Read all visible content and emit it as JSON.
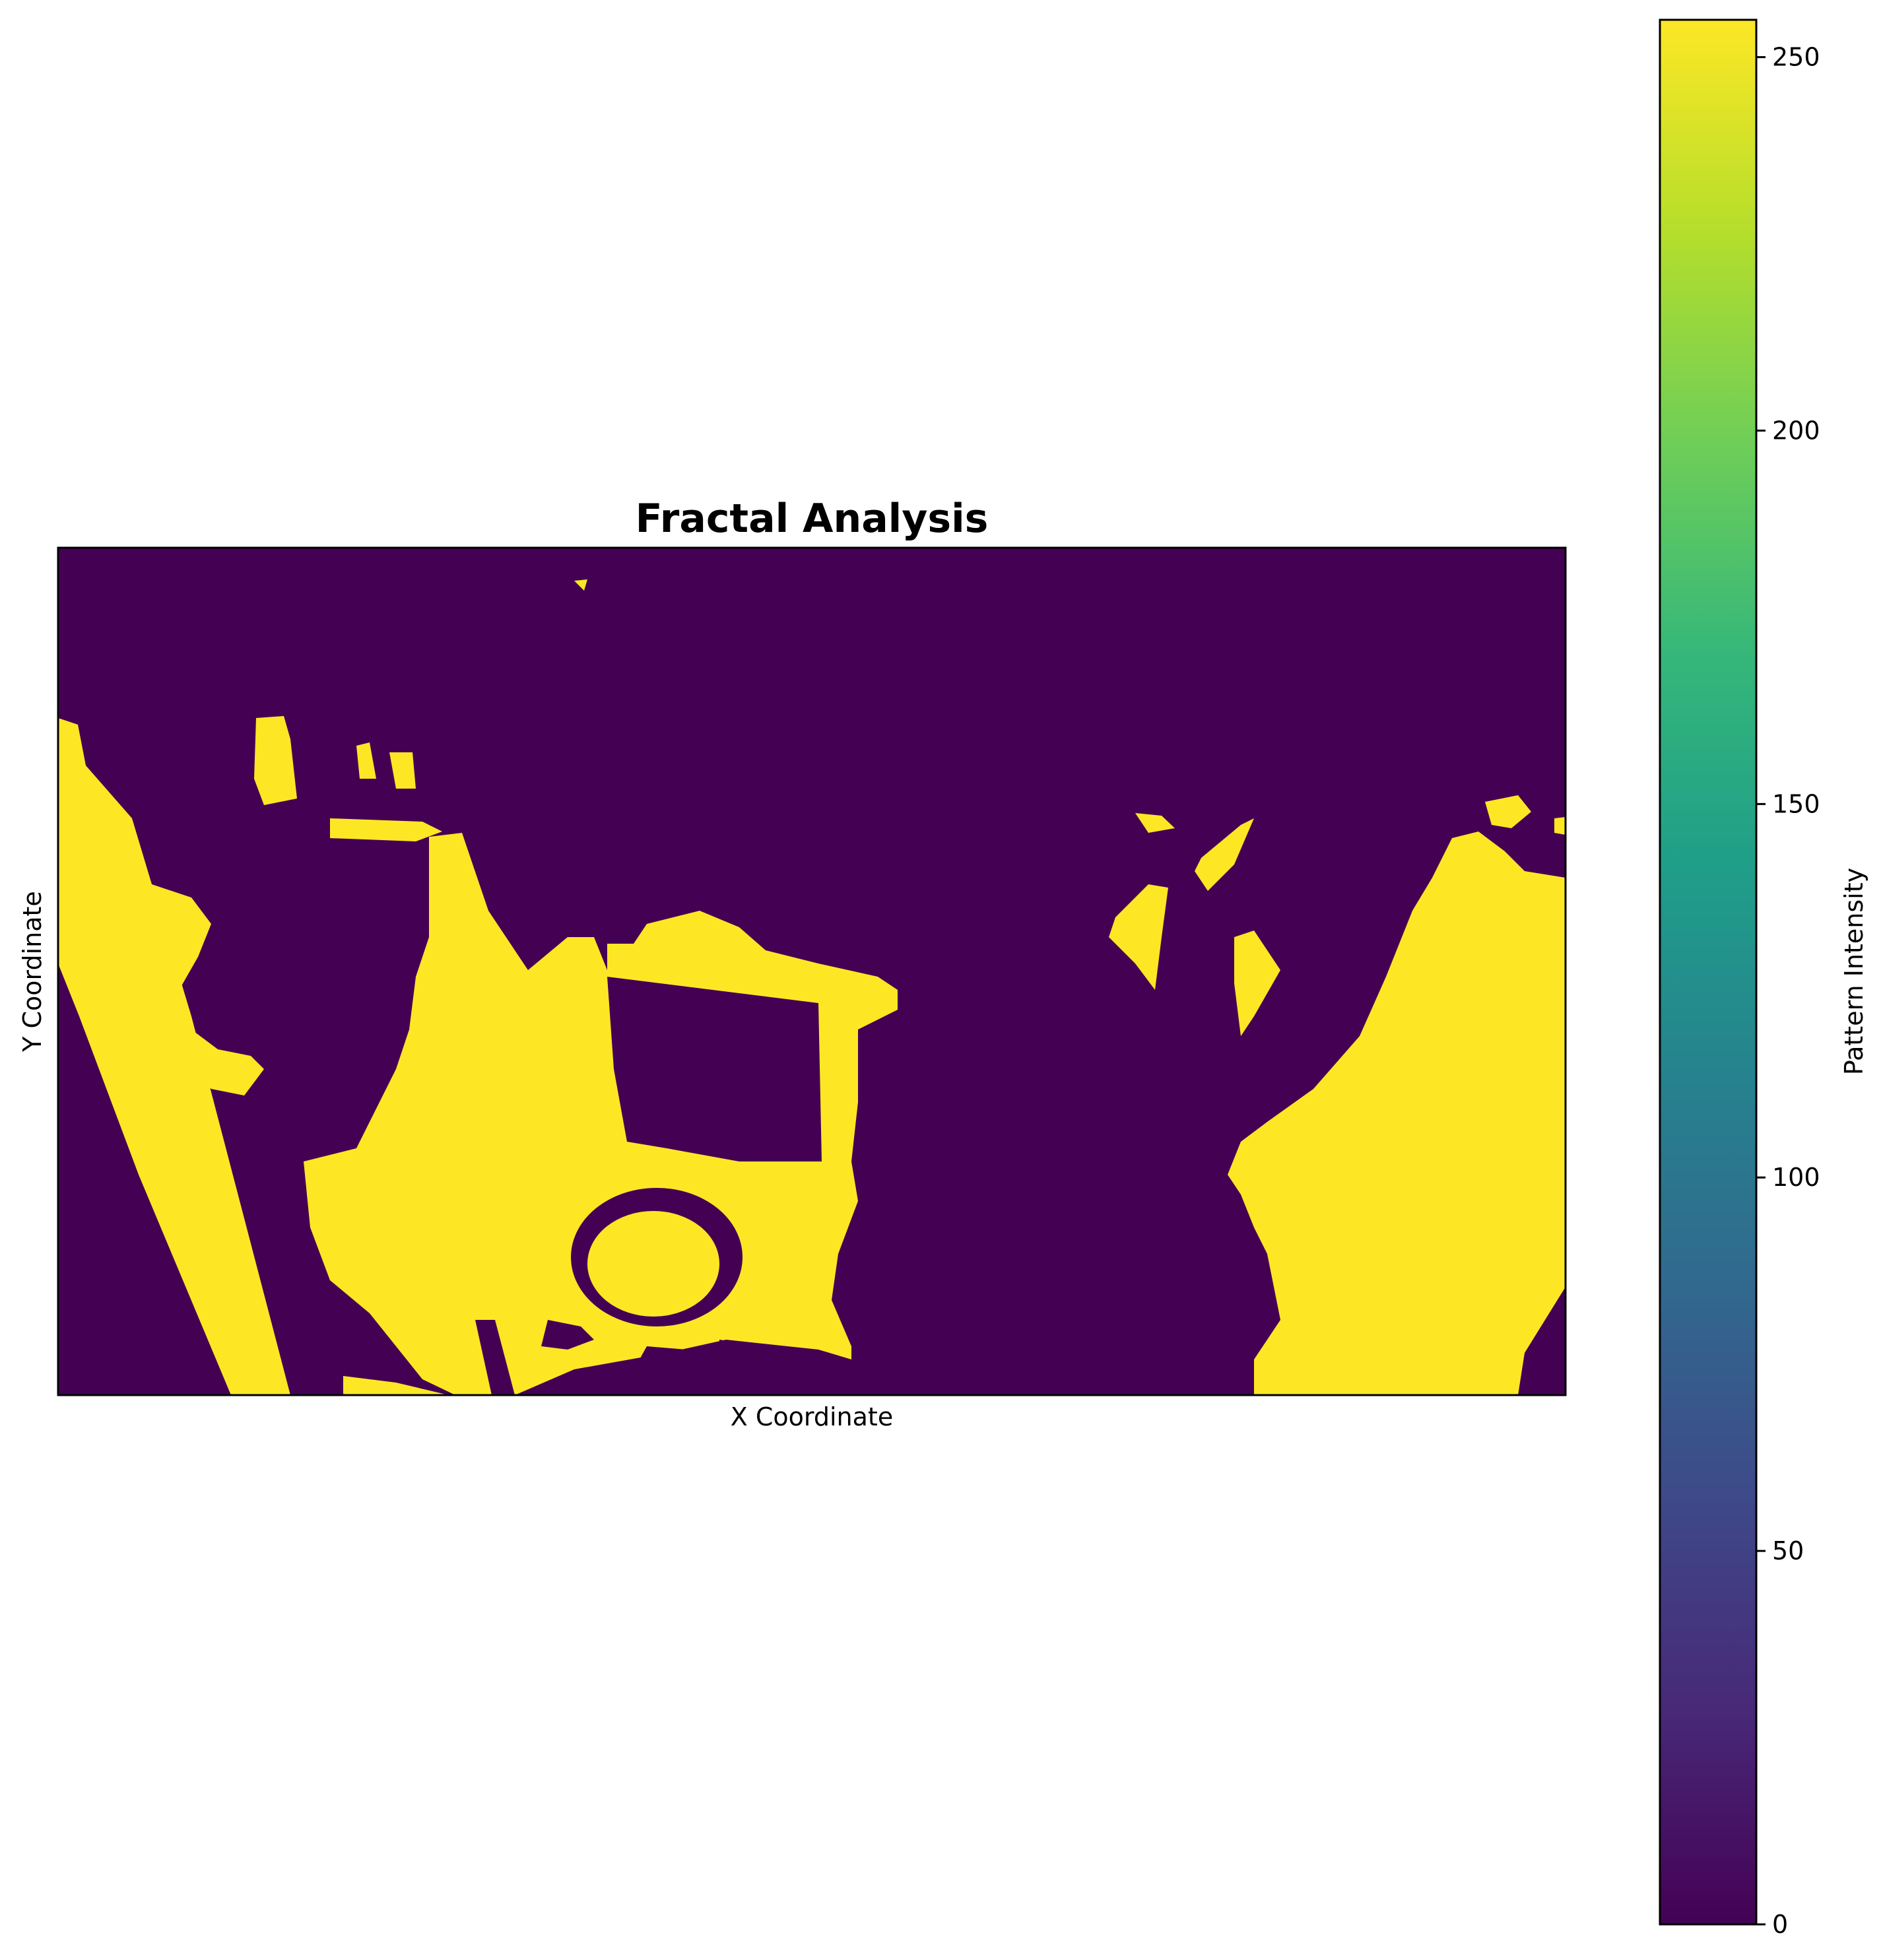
{
  "chart_data": {
    "type": "heatmap",
    "title": "Fractal Analysis",
    "xlabel": "X Coordinate",
    "ylabel": "Y Coordinate",
    "x_ticks_shown": false,
    "y_ticks_shown": false,
    "colormap": "viridis",
    "colormap_stops": [
      "#440154",
      "#482878",
      "#3e4989",
      "#31688e",
      "#26828e",
      "#1f9e89",
      "#35b779",
      "#6ece58",
      "#b5de2b",
      "#fde725"
    ],
    "low_color": "#440154",
    "high_color": "#fde725",
    "colorbar": {
      "label": "Pattern Intensity",
      "range": [
        0,
        255
      ],
      "ticks": [
        0,
        50,
        100,
        150,
        200,
        250
      ],
      "tick_labels": [
        "0",
        "50",
        "100",
        "150",
        "200",
        "250"
      ]
    },
    "binary_values": [
      0,
      255
    ],
    "description_regions_value": 255
  }
}
